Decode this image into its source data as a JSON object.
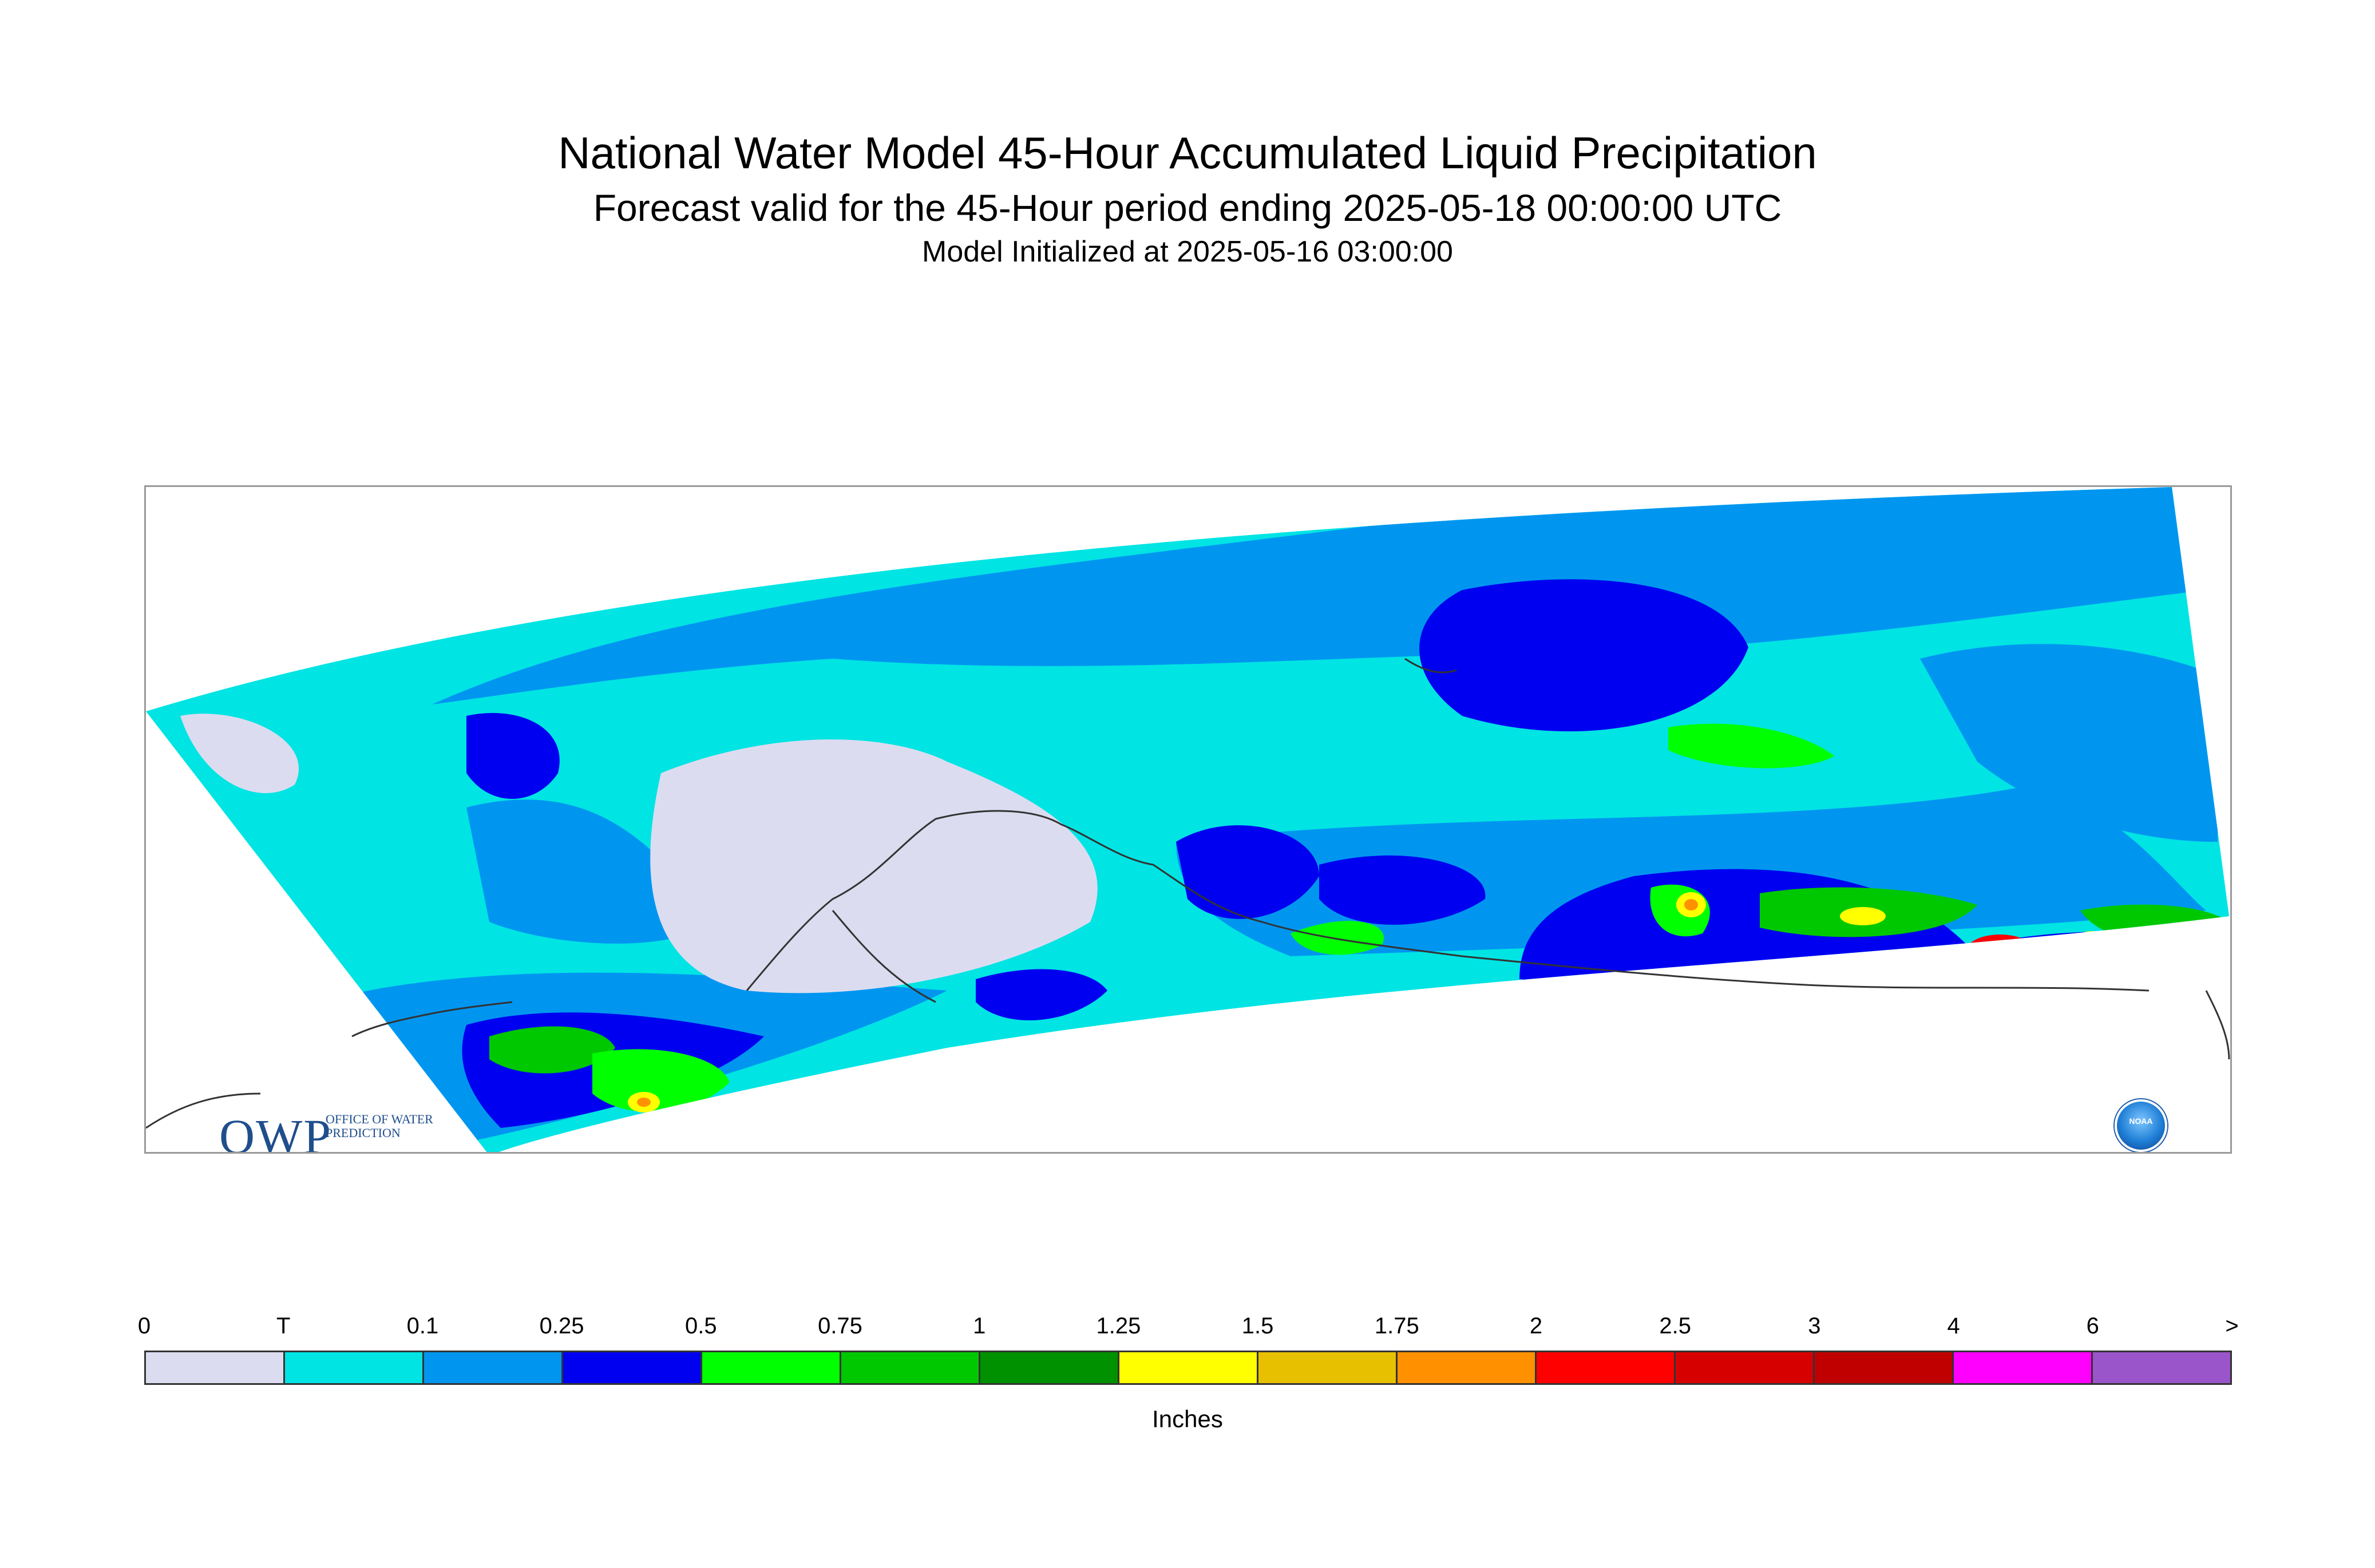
{
  "title": "National Water Model 45-Hour Accumulated Liquid Precipitation",
  "subtitle": "Forecast valid for the 45-Hour period ending 2025-05-18 00:00:00 UTC",
  "init_line": "Model Initialized at 2025-05-16 03:00:00",
  "logos": {
    "owp_big": "OWP",
    "owp_small": "Office of Water Prediction",
    "noaa": "NOAA"
  },
  "legend": {
    "units": "Inches",
    "ticks": [
      "0",
      "T",
      "0.1",
      "0.25",
      "0.5",
      "0.75",
      "1",
      "1.25",
      "1.5",
      "1.75",
      "2",
      "2.5",
      "3",
      "4",
      "6",
      ">"
    ],
    "colors": [
      "#dcdcf0",
      "#00e4e4",
      "#0096f0",
      "#0000f0",
      "#00ff00",
      "#00c800",
      "#009100",
      "#ffff00",
      "#e7c000",
      "#ff9100",
      "#ff0000",
      "#d60000",
      "#c00000",
      "#ff00ff",
      "#9955c9"
    ]
  },
  "map": {
    "background_color": "#00e4e4"
  }
}
